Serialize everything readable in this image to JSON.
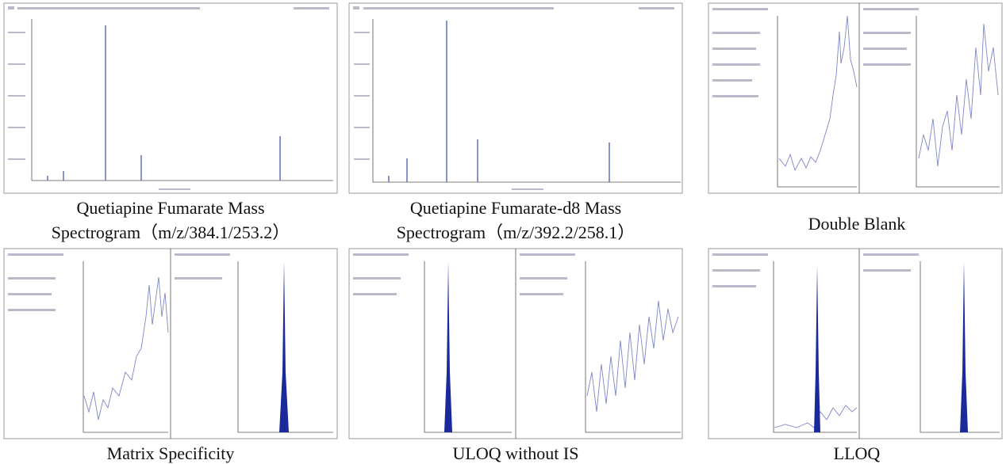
{
  "panels": [
    {
      "caption_lines": [
        "Quetiapine Fumarate Mass",
        "Spectrogram（m/z/384.1/253.2）"
      ]
    },
    {
      "caption_lines": [
        "Quetiapine Fumarate-d8 Mass",
        "Spectrogram（m/z/392.2/258.1）"
      ]
    },
    {
      "caption_lines": [
        "Double Blank"
      ]
    },
    {
      "caption_lines": [
        "Matrix Specificity"
      ]
    },
    {
      "caption_lines": [
        "ULOQ without IS"
      ]
    },
    {
      "caption_lines": [
        "LLOQ"
      ]
    }
  ]
}
